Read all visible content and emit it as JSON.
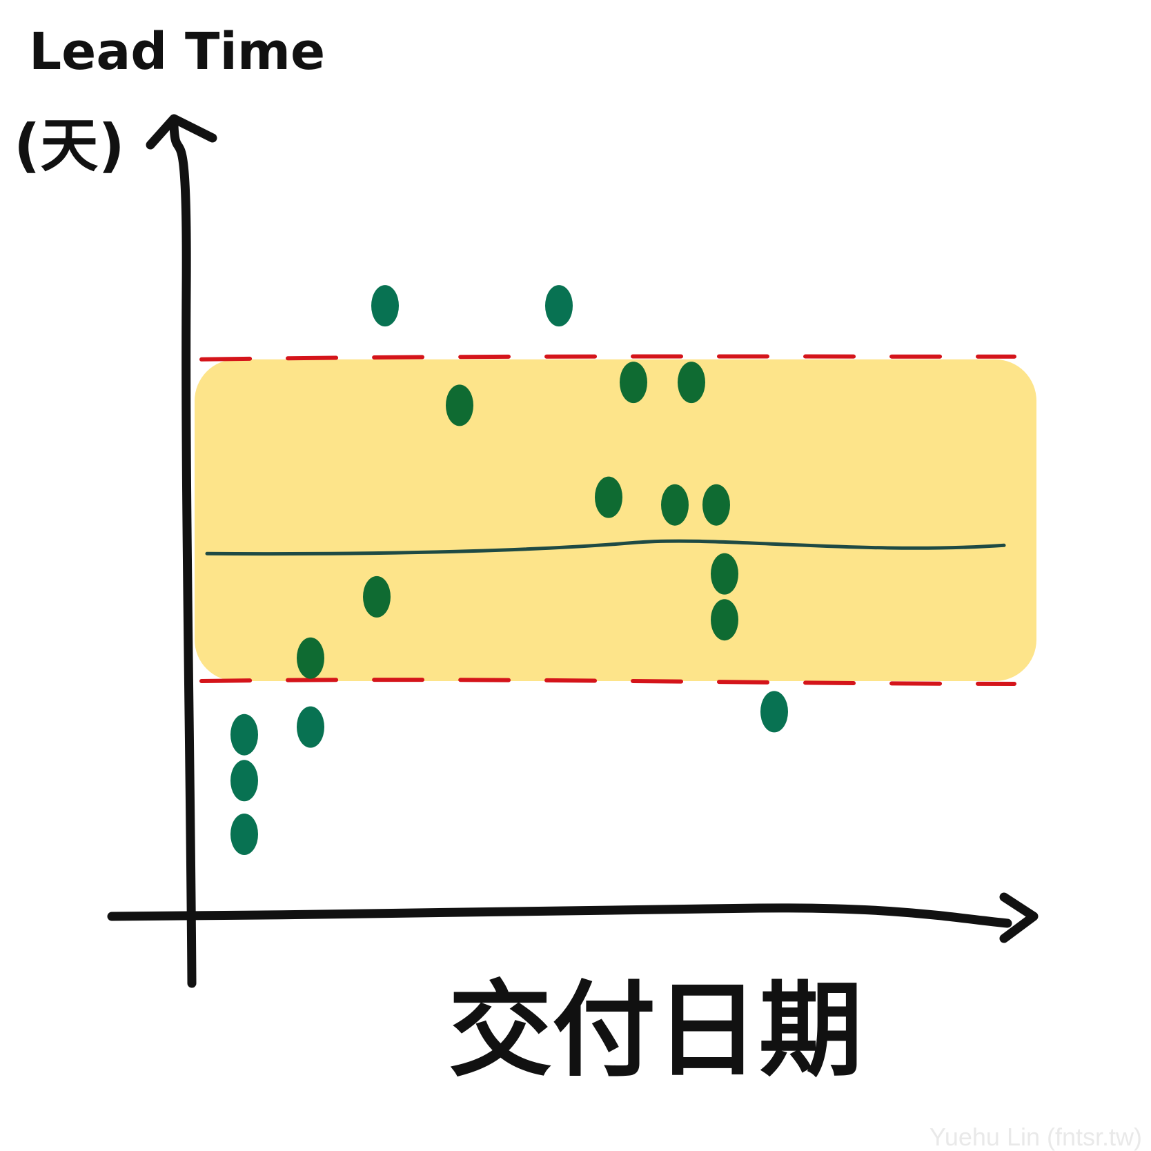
{
  "chart_data": {
    "type": "scatter",
    "title": "",
    "ylabel_line1": "Lead Time",
    "ylabel_line2": "(天)",
    "xlabel": "交付日期",
    "xlim": [
      0,
      100
    ],
    "ylim": [
      0,
      100
    ],
    "band": {
      "lower": 30,
      "upper": 72
    },
    "mean": 47,
    "control_limits": {
      "lower": 30,
      "upper": 72
    },
    "points": [
      {
        "x": 7,
        "y": 23,
        "in_band": false
      },
      {
        "x": 7,
        "y": 17,
        "in_band": false
      },
      {
        "x": 7,
        "y": 10,
        "in_band": false
      },
      {
        "x": 15,
        "y": 24,
        "in_band": false
      },
      {
        "x": 15,
        "y": 33,
        "in_band": true
      },
      {
        "x": 23,
        "y": 41,
        "in_band": true
      },
      {
        "x": 24,
        "y": 79,
        "in_band": false
      },
      {
        "x": 33,
        "y": 66,
        "in_band": true
      },
      {
        "x": 45,
        "y": 79,
        "in_band": false
      },
      {
        "x": 51,
        "y": 54,
        "in_band": true
      },
      {
        "x": 54,
        "y": 69,
        "in_band": true
      },
      {
        "x": 59,
        "y": 53,
        "in_band": true
      },
      {
        "x": 61,
        "y": 69,
        "in_band": true
      },
      {
        "x": 64,
        "y": 53,
        "in_band": true
      },
      {
        "x": 65,
        "y": 44,
        "in_band": true
      },
      {
        "x": 65,
        "y": 38,
        "in_band": true
      },
      {
        "x": 71,
        "y": 26,
        "in_band": false
      }
    ]
  },
  "colors": {
    "band": "#fde48a",
    "limit_line": "#d4141a",
    "mean_line": "#1e4a44",
    "point_in_band": "#0f6b32",
    "point_outside": "#087252",
    "axis": "#111111"
  },
  "watermark": "Yuehu Lin (fntsr.tw)"
}
